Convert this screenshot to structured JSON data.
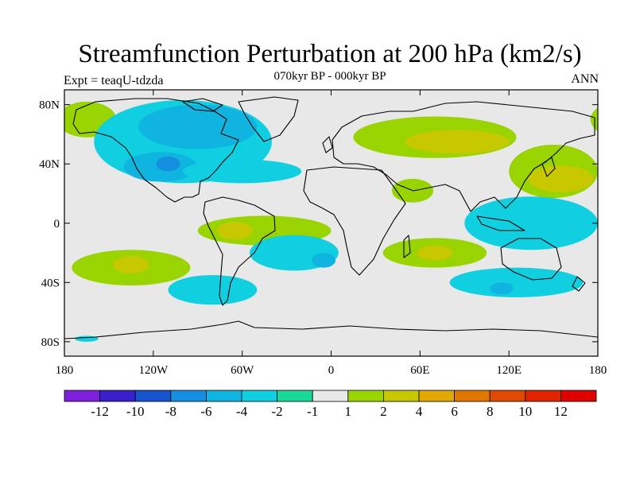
{
  "title": "Streamfunction Perturbation at 200 hPa (km2/s)",
  "subtitle": "070kyr BP - 000kyr BP",
  "experiment_label": "Expt = teaqU-tdzda",
  "season_label": "ANN",
  "map": {
    "lon_range": [
      -180,
      180
    ],
    "lat_range": [
      -90,
      90
    ],
    "x_ticks": [
      {
        "lon": -180,
        "label": "180"
      },
      {
        "lon": -120,
        "label": "120W"
      },
      {
        "lon": -60,
        "label": "60W"
      },
      {
        "lon": 0,
        "label": "0"
      },
      {
        "lon": 60,
        "label": "60E"
      },
      {
        "lon": 120,
        "label": "120E"
      },
      {
        "lon": 180,
        "label": "180"
      }
    ],
    "y_ticks": [
      {
        "lat": 80,
        "label": "80N"
      },
      {
        "lat": 40,
        "label": "40N"
      },
      {
        "lat": 0,
        "label": "0"
      },
      {
        "lat": -40,
        "label": "40S"
      },
      {
        "lat": -80,
        "label": "80S"
      }
    ],
    "field_regions": [
      {
        "name": "north-pacific-positive",
        "level": "2",
        "lon": -165,
        "lat": 70,
        "rx": 20,
        "ry": 12
      },
      {
        "name": "north-america-negative",
        "level": "-2",
        "lon": -100,
        "lat": 55,
        "rx": 60,
        "ry": 28
      },
      {
        "name": "canada-negative-core",
        "level": "-4",
        "lon": -90,
        "lat": 65,
        "rx": 40,
        "ry": 15
      },
      {
        "name": "west-us-negative-core",
        "level": "-4",
        "lon": -115,
        "lat": 38,
        "rx": 25,
        "ry": 10
      },
      {
        "name": "west-us-negative-max",
        "level": "-6",
        "lon": -110,
        "lat": 40,
        "rx": 8,
        "ry": 5
      },
      {
        "name": "subtropical-atlantic-negative",
        "level": "-2",
        "lon": -60,
        "lat": 35,
        "rx": 40,
        "ry": 8
      },
      {
        "name": "eurasia-positive",
        "level": "2",
        "lon": 70,
        "lat": 58,
        "rx": 55,
        "ry": 14
      },
      {
        "name": "eurasia-positive-core",
        "level": "4",
        "lon": 85,
        "lat": 55,
        "rx": 35,
        "ry": 8
      },
      {
        "name": "arabia-positive",
        "level": "2",
        "lon": 55,
        "lat": 22,
        "rx": 14,
        "ry": 8
      },
      {
        "name": "northwest-pacific-positive",
        "level": "2",
        "lon": 150,
        "lat": 35,
        "rx": 30,
        "ry": 18
      },
      {
        "name": "northwest-pacific-core",
        "level": "4",
        "lon": 155,
        "lat": 30,
        "rx": 22,
        "ry": 9
      },
      {
        "name": "indo-pacific-negative",
        "level": "-2",
        "lon": 135,
        "lat": 0,
        "rx": 45,
        "ry": 18
      },
      {
        "name": "tropical-atlantic-positive",
        "level": "2",
        "lon": -45,
        "lat": -5,
        "rx": 45,
        "ry": 10
      },
      {
        "name": "brazil-positive-core",
        "level": "4",
        "lon": -65,
        "lat": -5,
        "rx": 12,
        "ry": 6
      },
      {
        "name": "south-pacific-positive",
        "level": "2",
        "lon": -135,
        "lat": -30,
        "rx": 40,
        "ry": 12
      },
      {
        "name": "south-pacific-positive-core",
        "level": "4",
        "lon": -135,
        "lat": -28,
        "rx": 12,
        "ry": 6
      },
      {
        "name": "south-atlantic-negative",
        "level": "-2",
        "lon": -25,
        "lat": -20,
        "rx": 30,
        "ry": 12
      },
      {
        "name": "south-atlantic-negative-core",
        "level": "-4",
        "lon": -5,
        "lat": -25,
        "rx": 8,
        "ry": 5
      },
      {
        "name": "southern-africa-positive",
        "level": "2",
        "lon": 70,
        "lat": -20,
        "rx": 35,
        "ry": 10
      },
      {
        "name": "southern-indian-positive-core",
        "level": "4",
        "lon": 70,
        "lat": -20,
        "rx": 12,
        "ry": 5
      },
      {
        "name": "southern-ocean-negative",
        "level": "-2",
        "lon": 125,
        "lat": -40,
        "rx": 45,
        "ry": 10
      },
      {
        "name": "southern-ocean-negative-core",
        "level": "-4",
        "lon": 115,
        "lat": -44,
        "rx": 8,
        "ry": 4
      },
      {
        "name": "south-america-south-negative",
        "level": "-2",
        "lon": -80,
        "lat": -45,
        "rx": 30,
        "ry": 10
      },
      {
        "name": "antarctic-pacific-negative",
        "level": "-2",
        "lon": -165,
        "lat": -78,
        "rx": 8,
        "ry": 2
      }
    ]
  },
  "colorbar": {
    "colors": [
      "#7f1fde",
      "#3a1fcc",
      "#1654cf",
      "#148ede",
      "#0fb5e0",
      "#10cfe0",
      "#1ad79a",
      "#e8e8e8",
      "#99d400",
      "#c8c800",
      "#e0a800",
      "#e07800",
      "#e04a00",
      "#e02400",
      "#e00000"
    ],
    "labels": [
      "-12",
      "-10",
      "-8",
      "-6",
      "-4",
      "-2",
      "-1",
      "1",
      "2",
      "4",
      "6",
      "8",
      "10",
      "12"
    ]
  },
  "level_colors": {
    "-6": "#148ede",
    "-4": "#0fb5e0",
    "-2": "#10cfe0",
    "-1": "#1ad79a",
    "1": "#e8e8e8",
    "2": "#99d400",
    "4": "#c8c800",
    "6": "#e0a800",
    "background": "#e8e8e8"
  }
}
